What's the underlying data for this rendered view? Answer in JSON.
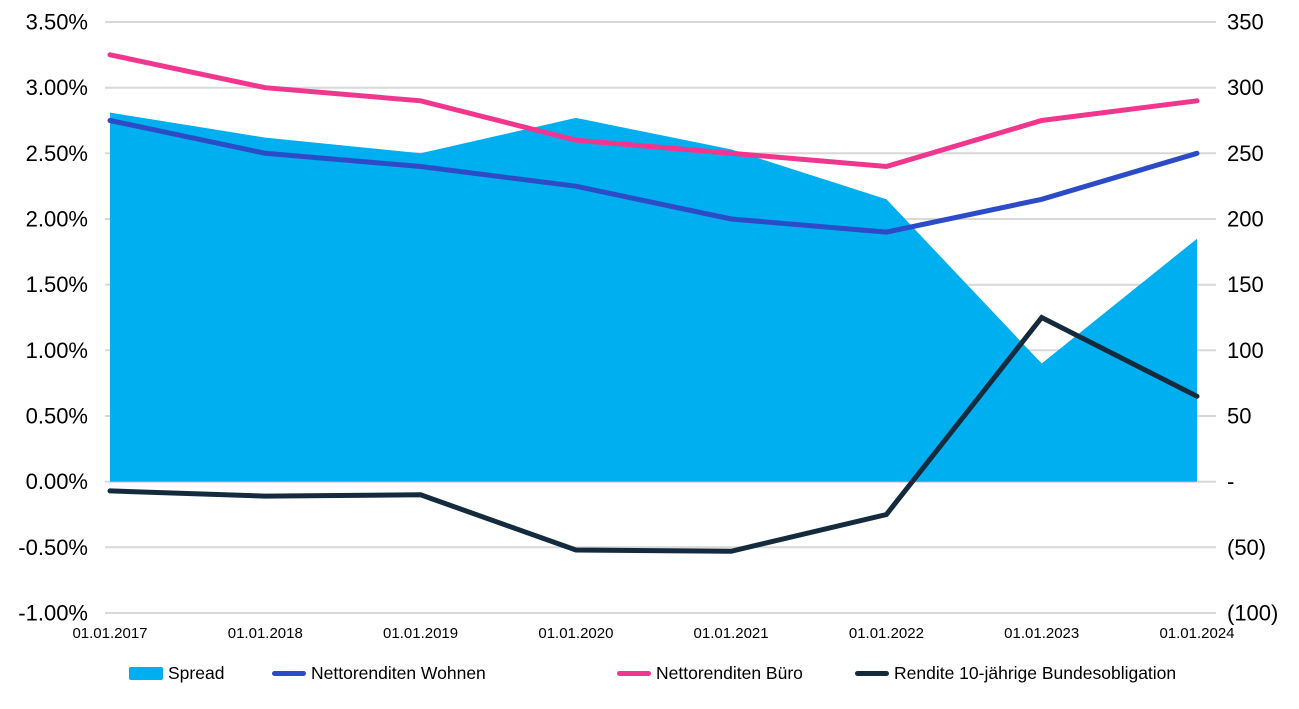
{
  "chart_data": {
    "type": "combo-area-line",
    "title": "",
    "categories": [
      "01.01.2017",
      "01.01.2018",
      "01.01.2019",
      "01.01.2020",
      "01.01.2021",
      "01.01.2022",
      "01.01.2023",
      "01.01.2024"
    ],
    "series": [
      {
        "name": "Spread",
        "type": "area",
        "axis": "right",
        "color": "#00AFEF",
        "values": [
          281,
          262,
          250,
          277,
          253,
          215,
          90,
          185
        ]
      },
      {
        "name": "Nettorenditen Wohnen",
        "type": "line",
        "axis": "left",
        "color": "#2B4BC7",
        "values": [
          2.75,
          2.5,
          2.4,
          2.25,
          2.0,
          1.9,
          2.15,
          2.5
        ]
      },
      {
        "name": "Nettorenditen Büro",
        "type": "line",
        "axis": "left",
        "color": "#F0368F",
        "values": [
          3.25,
          3.0,
          2.9,
          2.6,
          2.5,
          2.4,
          2.75,
          2.9
        ]
      },
      {
        "name": "Rendite 10-jährige Bundesobligation",
        "type": "line",
        "axis": "left",
        "color": "#142B3E",
        "values": [
          -0.07,
          -0.11,
          -0.1,
          -0.52,
          -0.53,
          -0.25,
          1.25,
          0.65
        ]
      }
    ],
    "left_axis": {
      "min": -1.0,
      "max": 3.5,
      "tick_values": [
        3.5,
        3.0,
        2.5,
        2.0,
        1.5,
        1.0,
        0.5,
        0.0,
        -0.5,
        -1.0
      ],
      "tick_labels": [
        "3.50%",
        "3.00%",
        "2.50%",
        "2.00%",
        "1.50%",
        "1.00%",
        "0.50%",
        "0.00%",
        "-0.50%",
        "-1.00%"
      ]
    },
    "right_axis": {
      "min": -100,
      "max": 350,
      "tick_values": [
        350,
        300,
        250,
        200,
        150,
        100,
        50,
        0,
        -50,
        -100
      ],
      "tick_labels": [
        "350",
        "300",
        "250",
        "200",
        "150",
        "100",
        "50",
        "-",
        "(50)",
        "(100)"
      ]
    },
    "grid": true,
    "gridline_color": "#D8D8D8",
    "legend_position": "bottom",
    "legend": [
      "Spread",
      "Nettorenditen Wohnen",
      "Nettorenditen Büro",
      "Rendite 10-jährige Bundesobligation"
    ]
  }
}
